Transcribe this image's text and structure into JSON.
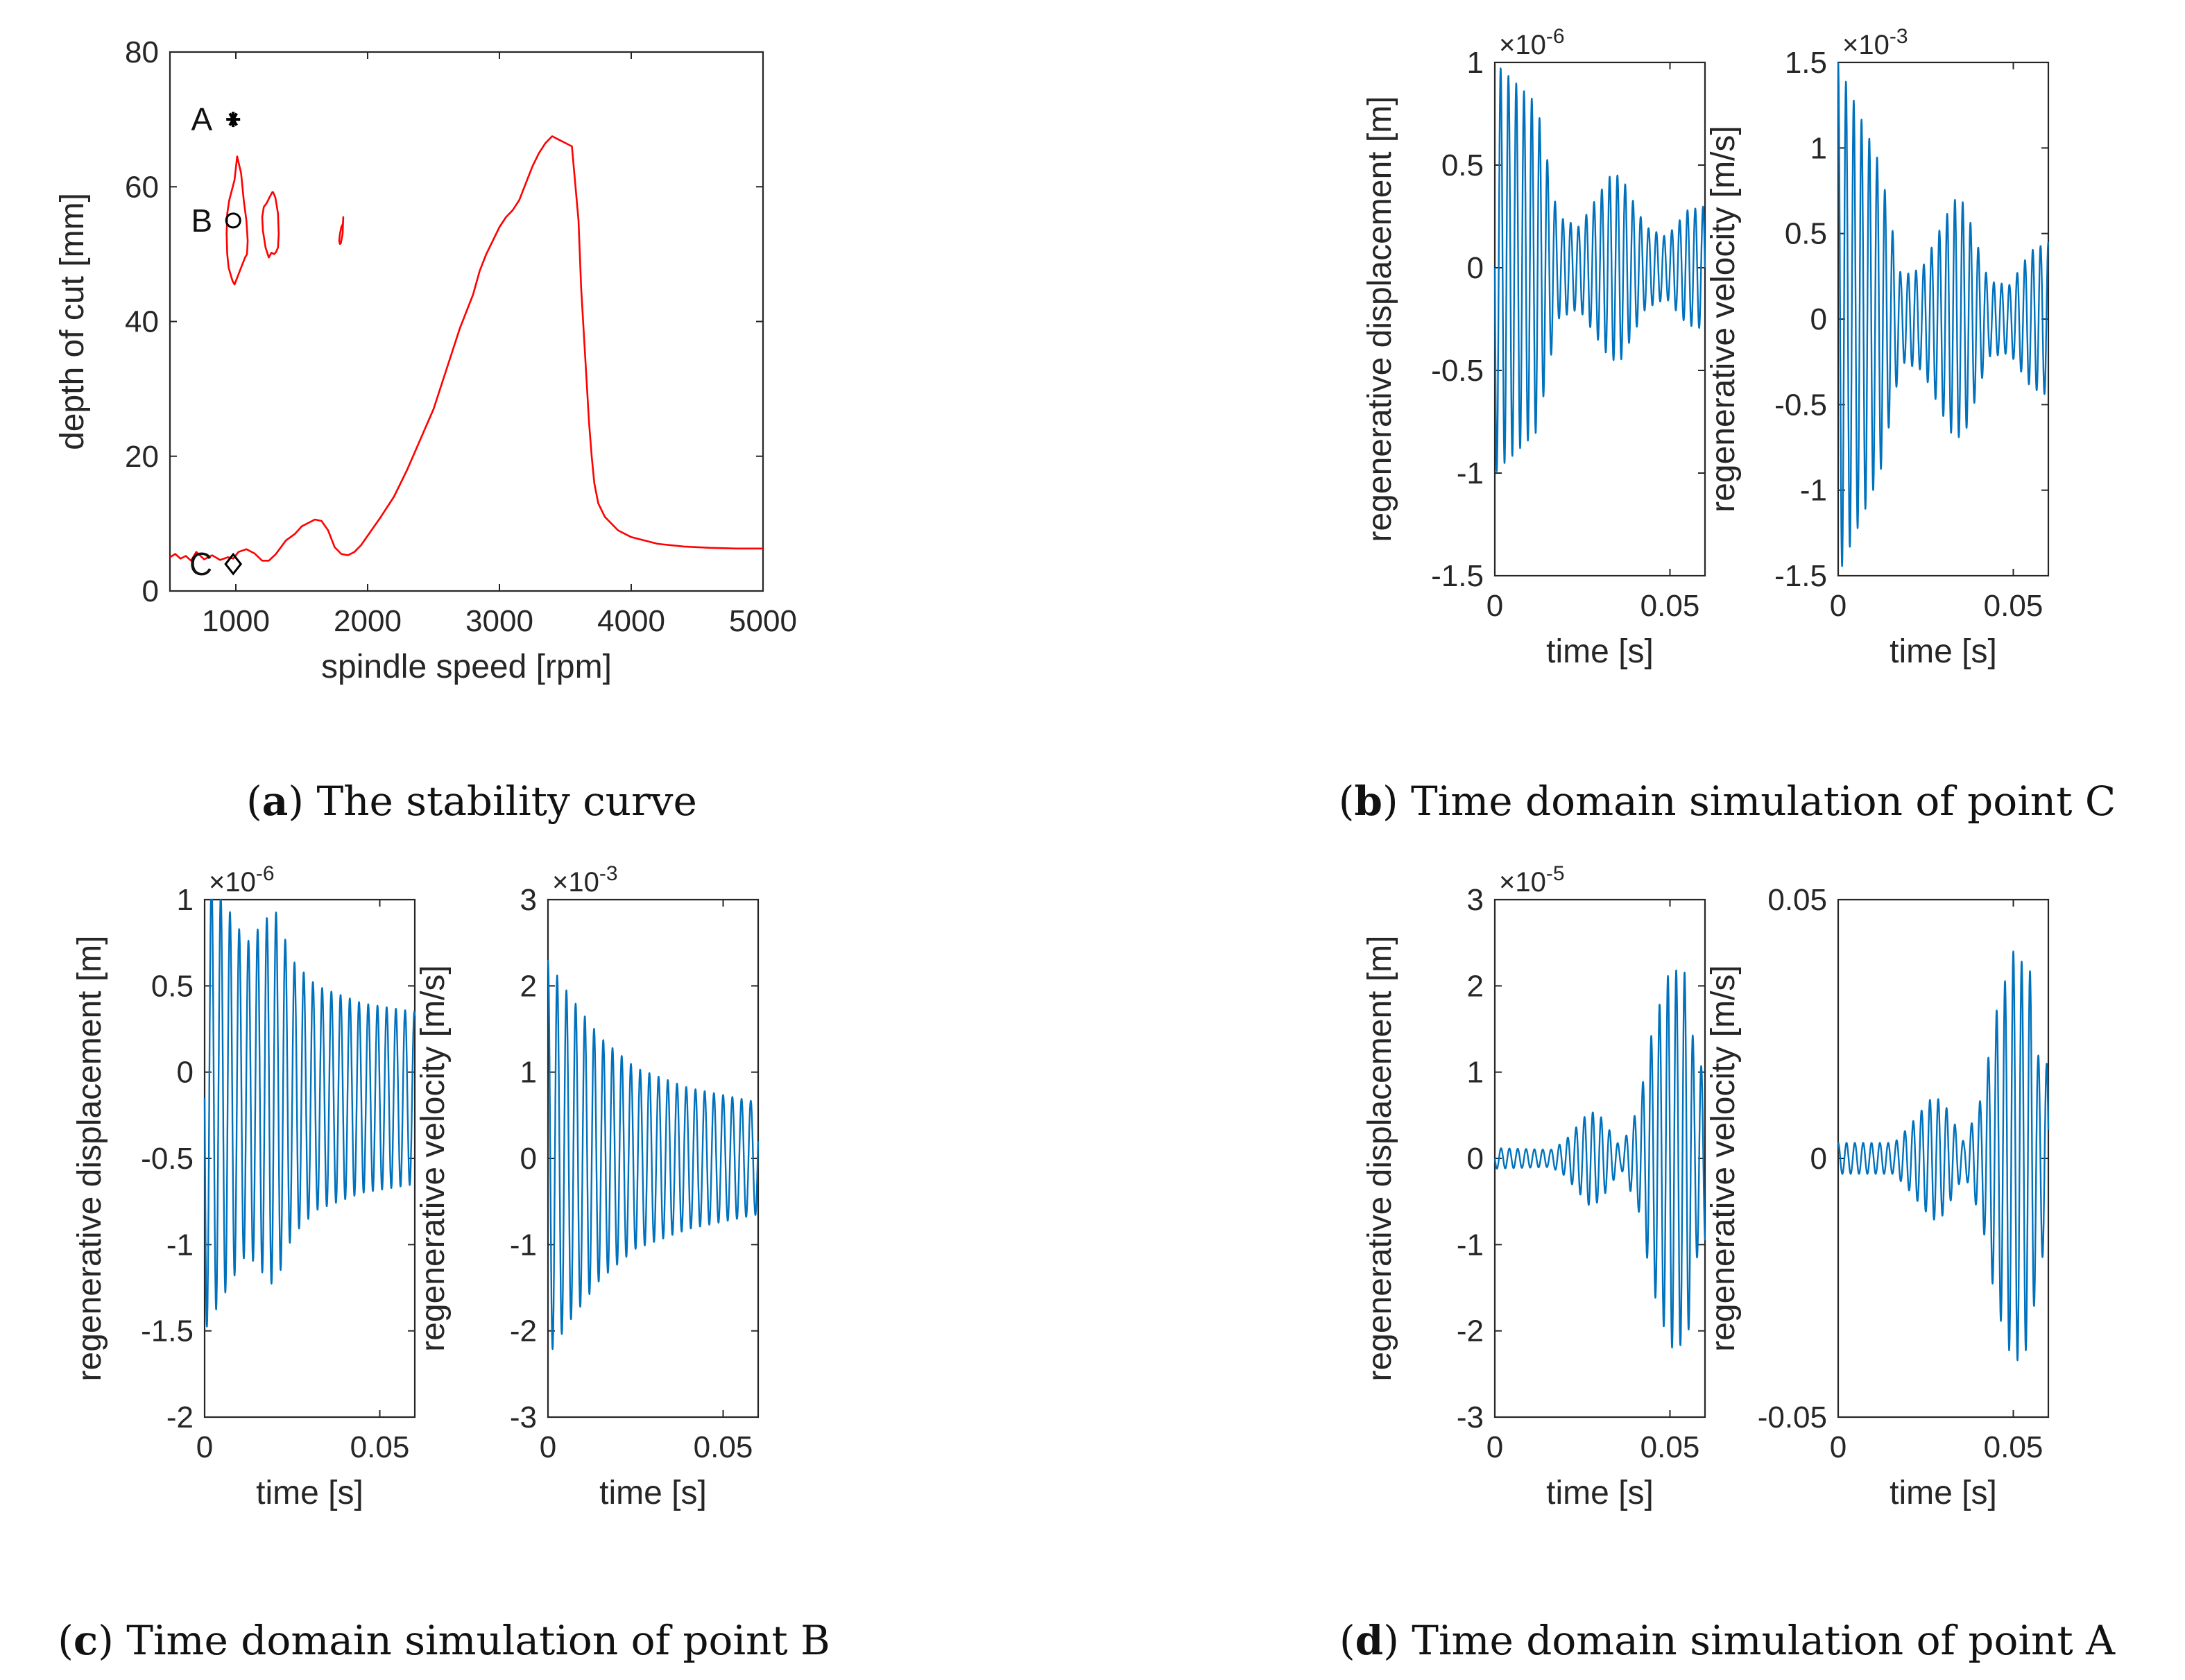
{
  "colors": {
    "stability": "#FF0000",
    "signal": "#0072BD",
    "axis": "#262626"
  },
  "captions": [
    {
      "label": "a",
      "text": "The stability curve"
    },
    {
      "label": "b",
      "text": "Time domain simulation of point C"
    },
    {
      "label": "c",
      "text": "Time domain simulation of point B"
    },
    {
      "label": "d",
      "text": "Time domain simulation of point A"
    }
  ],
  "chart_data": [
    {
      "id": "a",
      "type": "line",
      "title": "",
      "xlabel": "spindle speed [rpm]",
      "ylabel": "depth of cut [mm]",
      "xlim": [
        500,
        5000
      ],
      "ylim": [
        0,
        80
      ],
      "xticks": [
        1000,
        2000,
        3000,
        4000,
        5000
      ],
      "yticks": [
        0,
        20,
        40,
        60,
        80
      ],
      "grid": false,
      "series": [
        {
          "name": "stability boundary",
          "x": [
            500,
            540,
            580,
            620,
            660,
            700,
            760,
            820,
            880,
            940,
            980,
            1020,
            1080,
            1140,
            1200,
            1250,
            1300,
            1380,
            1450,
            1500,
            1550,
            1600,
            1650,
            1700,
            1750,
            1800,
            1850,
            1900,
            1950,
            2000,
            2100,
            2200,
            2300,
            2400,
            2500,
            2600,
            2700,
            2800,
            2850,
            2900,
            2950,
            3000,
            3050,
            3100,
            3150,
            3200,
            3250,
            3300,
            3350,
            3400,
            3450,
            3500,
            3550,
            3600,
            3620,
            3650,
            3680,
            3700,
            3720,
            3750,
            3800,
            3850,
            3900,
            4000,
            4200,
            4400,
            4600,
            4800,
            5000
          ],
          "y": [
            5.0,
            5.5,
            4.8,
            5.2,
            4.5,
            5.8,
            4.7,
            5.3,
            4.6,
            5.0,
            4.8,
            5.8,
            6.2,
            5.6,
            4.5,
            4.5,
            5.4,
            7.5,
            8.5,
            9.6,
            10.1,
            10.6,
            10.4,
            9.0,
            6.5,
            5.5,
            5.3,
            5.8,
            6.8,
            8.2,
            11.0,
            14.0,
            18.0,
            22.5,
            27.0,
            33.0,
            39.0,
            44.0,
            47.5,
            50.0,
            52.0,
            54.0,
            55.5,
            56.5,
            58.0,
            60.5,
            63.0,
            65.0,
            66.5,
            67.5,
            67.0,
            66.5,
            66.0,
            55.0,
            45.0,
            35.0,
            25.0,
            20.0,
            16.0,
            13.0,
            11.0,
            10.0,
            9.0,
            8.0,
            7.0,
            6.6,
            6.4,
            6.3,
            6.3
          ]
        },
        {
          "name": "stability lobe 1",
          "x": [
            990,
            1010,
            1040,
            1060,
            1080,
            1090,
            1085,
            1070,
            1060,
            1050,
            1030,
            1010,
            990,
            975,
            960,
            945,
            935,
            930,
            935,
            950,
            970,
            990
          ],
          "y": [
            61,
            64.5,
            62,
            58,
            55,
            52,
            50,
            49.5,
            49,
            48.5,
            47.5,
            46.5,
            45.5,
            46,
            47,
            48,
            50,
            53,
            56,
            58,
            59.5,
            61
          ]
        },
        {
          "name": "stability lobe 2",
          "x": [
            1280,
            1300,
            1320,
            1325,
            1320,
            1305,
            1290,
            1270,
            1250,
            1225,
            1205,
            1200,
            1212,
            1235,
            1255,
            1280
          ],
          "y": [
            59.3,
            58.4,
            56,
            53,
            51,
            50.3,
            50,
            50.2,
            49.5,
            51,
            53.5,
            55.5,
            57,
            57.6,
            58.4,
            59.3
          ]
        },
        {
          "name": "stability lobe 3",
          "x": [
            1795,
            1810,
            1815,
            1812,
            1800,
            1790,
            1784,
            1790,
            1795
          ],
          "y": [
            51.5,
            53,
            55.5,
            54.5,
            54,
            53,
            52,
            51.5,
            51.5
          ]
        }
      ],
      "markers": [
        {
          "label": "A",
          "shape": "asterisk",
          "x": 980,
          "y": 70
        },
        {
          "label": "B",
          "shape": "circle",
          "x": 980,
          "y": 55
        },
        {
          "label": "C",
          "shape": "diamond",
          "x": 980,
          "y": 4
        }
      ]
    },
    {
      "id": "b1",
      "type": "line",
      "point": "C",
      "xlabel": "time [s]",
      "ylabel": "regenerative displacement [m]",
      "multiplier": "×10",
      "multiplier_exp": "-6",
      "xlim": [
        0,
        0.06
      ],
      "ylim": [
        -1.5,
        1
      ],
      "xticks": [
        0,
        0.05
      ],
      "xtick_labels": [
        "0",
        "0.05"
      ],
      "yticks": [
        -1.5,
        -1,
        -0.5,
        0,
        0.5,
        1
      ],
      "ytick_labels": [
        "-1.5",
        "-1",
        "-0.5",
        "0",
        "0.5",
        "1"
      ],
      "signal": {
        "frequency_hz": 450,
        "phase": 1.5708,
        "envelope": [
          [
            0,
            1.0
          ],
          [
            0.012,
            0.8
          ],
          [
            0.018,
            0.25
          ],
          [
            0.024,
            0.2
          ],
          [
            0.033,
            0.45
          ],
          [
            0.036,
            0.45
          ],
          [
            0.043,
            0.2
          ],
          [
            0.049,
            0.15
          ],
          [
            0.055,
            0.28
          ],
          [
            0.06,
            0.3
          ]
        ]
      }
    },
    {
      "id": "b2",
      "type": "line",
      "point": "C",
      "xlabel": "time [s]",
      "ylabel": "regenerative velocity [m/s]",
      "multiplier": "×10",
      "multiplier_exp": "-3",
      "xlim": [
        0,
        0.06
      ],
      "ylim": [
        -1.5,
        1.5
      ],
      "xticks": [
        0,
        0.05
      ],
      "xtick_labels": [
        "0",
        "0.05"
      ],
      "yticks": [
        -1.5,
        -1,
        -0.5,
        0,
        0.5,
        1,
        1.5
      ],
      "ytick_labels": [
        "-1.5",
        "-1",
        "-0.5",
        "0",
        "0.5",
        "1",
        "1.5"
      ],
      "signal": {
        "frequency_hz": 450,
        "phase": 0,
        "envelope": [
          [
            0,
            1.5
          ],
          [
            0.004,
            1.3
          ],
          [
            0.012,
            0.9
          ],
          [
            0.018,
            0.25
          ],
          [
            0.024,
            0.3
          ],
          [
            0.033,
            0.7
          ],
          [
            0.036,
            0.68
          ],
          [
            0.043,
            0.22
          ],
          [
            0.049,
            0.2
          ],
          [
            0.055,
            0.4
          ],
          [
            0.06,
            0.45
          ]
        ]
      }
    },
    {
      "id": "c1",
      "type": "line",
      "point": "B",
      "xlabel": "time [s]",
      "ylabel": "regenerative displacement [m]",
      "multiplier": "×10",
      "multiplier_exp": "-6",
      "xlim": [
        0,
        0.06
      ],
      "ylim": [
        -2,
        1
      ],
      "xticks": [
        0,
        0.05
      ],
      "xtick_labels": [
        "0",
        "0.05"
      ],
      "yticks": [
        -2,
        -1.5,
        -1,
        -0.5,
        0,
        0.5,
        1
      ],
      "ytick_labels": [
        "-2",
        "-1.5",
        "-1",
        "-0.5",
        "0",
        "0.5",
        "1"
      ],
      "signal": {
        "frequency_hz": 380,
        "phase": 1.5708,
        "offset": -0.15,
        "envelope": [
          [
            0,
            1.35
          ],
          [
            0.004,
            1.2
          ],
          [
            0.012,
            0.9
          ],
          [
            0.02,
            1.1
          ],
          [
            0.025,
            0.8
          ],
          [
            0.032,
            0.65
          ],
          [
            0.045,
            0.55
          ],
          [
            0.06,
            0.5
          ]
        ]
      }
    },
    {
      "id": "c2",
      "type": "line",
      "point": "B",
      "xlabel": "time [s]",
      "ylabel": "regenerative velocity [m/s]",
      "multiplier": "×10",
      "multiplier_exp": "-3",
      "xlim": [
        0,
        0.06
      ],
      "ylim": [
        -3,
        3
      ],
      "xticks": [
        0,
        0.05
      ],
      "xtick_labels": [
        "0",
        "0.05"
      ],
      "yticks": [
        -3,
        -2,
        -1,
        0,
        1,
        2,
        3
      ],
      "ytick_labels": [
        "-3",
        "-2",
        "-1",
        "0",
        "1",
        "2",
        "3"
      ],
      "signal": {
        "frequency_hz": 380,
        "phase": 0,
        "envelope": [
          [
            0,
            2.3
          ],
          [
            0.006,
            1.9
          ],
          [
            0.015,
            1.4
          ],
          [
            0.025,
            1.05
          ],
          [
            0.04,
            0.82
          ],
          [
            0.06,
            0.65
          ]
        ]
      }
    },
    {
      "id": "d1",
      "type": "line",
      "point": "A",
      "xlabel": "time [s]",
      "ylabel": "regenerative displacement [m]",
      "multiplier": "×10",
      "multiplier_exp": "-5",
      "xlim": [
        0,
        0.06
      ],
      "ylim": [
        -3,
        3
      ],
      "xticks": [
        0,
        0.05
      ],
      "xtick_labels": [
        "0",
        "0.05"
      ],
      "yticks": [
        -3,
        -2,
        -1,
        0,
        1,
        2,
        3
      ],
      "ytick_labels": [
        "-3",
        "-2",
        "-1",
        "0",
        "1",
        "2",
        "3"
      ],
      "signal": {
        "frequency_hz": 420,
        "phase": 1.5708,
        "envelope": [
          [
            0,
            0.12
          ],
          [
            0.016,
            0.1
          ],
          [
            0.02,
            0.2
          ],
          [
            0.027,
            0.55
          ],
          [
            0.03,
            0.5
          ],
          [
            0.036,
            0.12
          ],
          [
            0.041,
            0.6
          ],
          [
            0.045,
            1.5
          ],
          [
            0.05,
            2.2
          ],
          [
            0.055,
            2.15
          ],
          [
            0.057,
            1.2
          ],
          [
            0.06,
            1.0
          ]
        ]
      }
    },
    {
      "id": "d2",
      "type": "line",
      "point": "A",
      "xlabel": "time [s]",
      "ylabel": "regenerative velocity [m/s]",
      "xlim": [
        0,
        0.06
      ],
      "ylim": [
        -0.05,
        0.05
      ],
      "xticks": [
        0,
        0.05
      ],
      "xtick_labels": [
        "0",
        "0.05"
      ],
      "yticks": [
        -0.05,
        0,
        0.05
      ],
      "ytick_labels": [
        "-0.05",
        "0",
        "0.05"
      ],
      "signal": {
        "frequency_hz": 420,
        "phase": 0,
        "envelope": [
          [
            0,
            0.003
          ],
          [
            0.016,
            0.003
          ],
          [
            0.02,
            0.006
          ],
          [
            0.027,
            0.012
          ],
          [
            0.03,
            0.011
          ],
          [
            0.036,
            0.003
          ],
          [
            0.041,
            0.012
          ],
          [
            0.045,
            0.028
          ],
          [
            0.05,
            0.04
          ],
          [
            0.055,
            0.036
          ],
          [
            0.057,
            0.02
          ],
          [
            0.06,
            0.018
          ]
        ]
      }
    }
  ]
}
